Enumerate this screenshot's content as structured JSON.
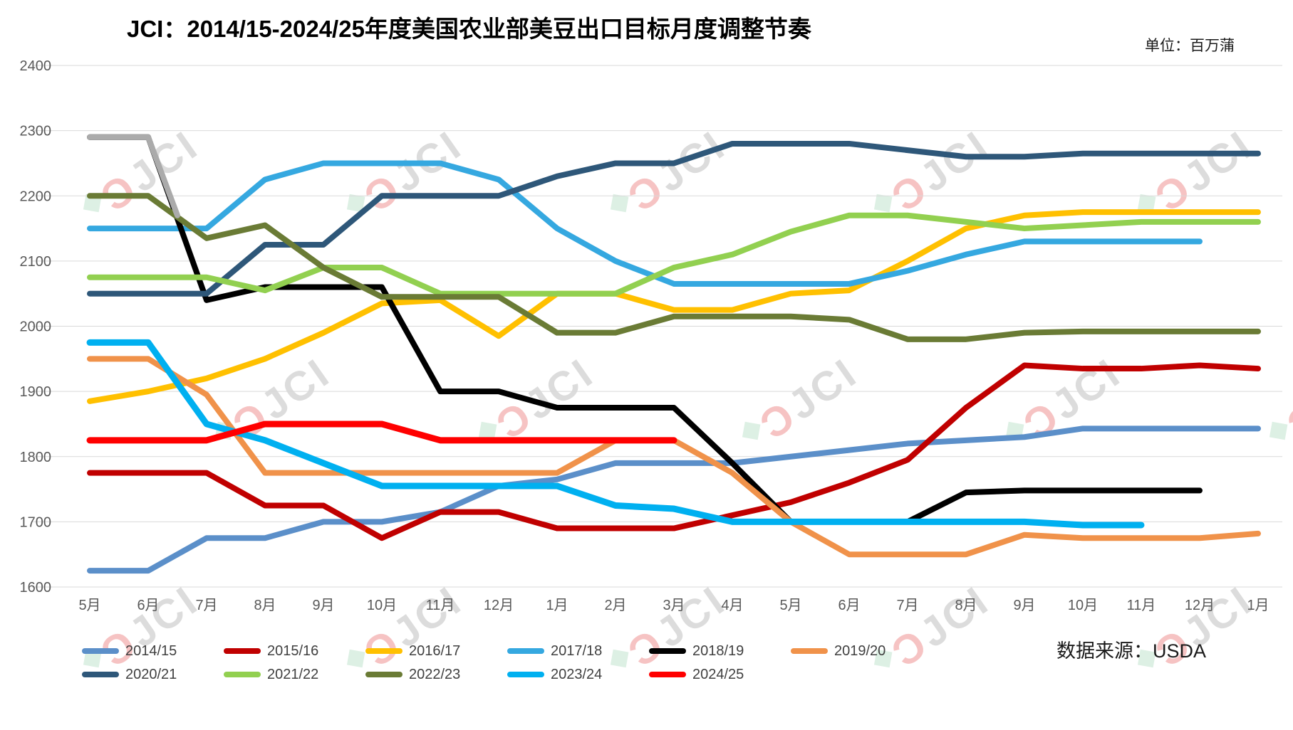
{
  "header": {
    "title": "JCI：2014/15-2024/25年度美国农业部美豆出口目标月度调整节奏",
    "unit_label": "单位：百万蒲",
    "source_label": "数据来源：USDA"
  },
  "chart_data": {
    "type": "line",
    "title": "JCI：2014/15-2024/25年度美国农业部美豆出口目标月度调整节奏",
    "ylabel": "百万蒲",
    "ylim": [
      1600,
      2400
    ],
    "ystep": 100,
    "grid": "horizontal",
    "legend_position": "bottom",
    "categories": [
      "5月",
      "6月",
      "7月",
      "8月",
      "9月",
      "10月",
      "11月",
      "12月",
      "1月",
      "2月",
      "3月",
      "4月",
      "5月",
      "6月",
      "7月",
      "8月",
      "9月",
      "10月",
      "11月",
      "12月",
      "1月"
    ],
    "series": [
      {
        "name": "2014/15",
        "color": "#5B8FC9",
        "values": [
          1625,
          1625,
          1675,
          1675,
          1700,
          1700,
          1715,
          1755,
          1765,
          1790,
          1790,
          1790,
          1800,
          1810,
          1820,
          1825,
          1830,
          1843,
          1843,
          1843,
          1843
        ]
      },
      {
        "name": "2015/16",
        "color": "#C00000",
        "values": [
          1775,
          1775,
          1775,
          1725,
          1725,
          1675,
          1715,
          1715,
          1690,
          1690,
          1690,
          1710,
          1730,
          1760,
          1795,
          1875,
          1940,
          1935,
          1935,
          1940,
          1935
        ]
      },
      {
        "name": "2016/17",
        "color": "#FFC000",
        "values": [
          1885,
          1900,
          1920,
          1950,
          1990,
          2035,
          2040,
          1985,
          2050,
          2050,
          2025,
          2025,
          2050,
          2055,
          2100,
          2150,
          2170,
          2175,
          2175,
          2175,
          2175
        ]
      },
      {
        "name": "2017/18",
        "color": "#35A8E0",
        "values": [
          2150,
          2150,
          2150,
          2225,
          2250,
          2250,
          2250,
          2225,
          2150,
          2100,
          2065,
          2065,
          2065,
          2065,
          2085,
          2110,
          2130,
          2130,
          2130,
          2130,
          null
        ]
      },
      {
        "name": "2018/19",
        "color": "#000000",
        "values": [
          2290,
          2290,
          2040,
          2060,
          2060,
          2060,
          1900,
          1900,
          1875,
          1875,
          1875,
          1790,
          1700,
          1700,
          1700,
          1745,
          1748,
          1748,
          1748,
          1748,
          null
        ]
      },
      {
        "name": "2019/20",
        "color": "#F0924A",
        "values": [
          1950,
          1950,
          1895,
          1775,
          1775,
          1775,
          1775,
          1775,
          1775,
          1825,
          1825,
          1775,
          1700,
          1650,
          1650,
          1650,
          1680,
          1675,
          1675,
          1675,
          1682
        ]
      },
      {
        "name": "2020/21",
        "color": "#2E5779",
        "values": [
          2050,
          2050,
          2050,
          2125,
          2125,
          2200,
          2200,
          2200,
          2230,
          2250,
          2250,
          2280,
          2280,
          2280,
          2270,
          2260,
          2260,
          2265,
          2265,
          2265,
          2265
        ]
      },
      {
        "name": "2021/22",
        "color": "#92D050",
        "values": [
          2075,
          2075,
          2075,
          2055,
          2090,
          2090,
          2050,
          2050,
          2050,
          2050,
          2090,
          2110,
          2145,
          2170,
          2170,
          2160,
          2150,
          2155,
          2160,
          2160,
          2160
        ]
      },
      {
        "name": "2022/23",
        "color": "#6A7B35",
        "values": [
          2200,
          2200,
          2135,
          2155,
          2090,
          2045,
          2045,
          2045,
          1990,
          1990,
          2015,
          2015,
          2015,
          2010,
          1980,
          1980,
          1990,
          1992,
          1992,
          1992,
          1992
        ]
      },
      {
        "name": "2023/24",
        "color": "#00B0F0",
        "values": [
          1975,
          1975,
          1850,
          1825,
          1790,
          1755,
          1755,
          1755,
          1755,
          1725,
          1720,
          1700,
          1700,
          1700,
          1700,
          1700,
          1700,
          1695,
          1695,
          null,
          null
        ]
      },
      {
        "name": "2024/25",
        "color": "#FF0000",
        "values": [
          1825,
          1825,
          1825,
          1850,
          1850,
          1850,
          1825,
          1825,
          1825,
          1825,
          1825,
          null,
          null,
          null,
          null,
          null,
          null,
          null,
          null,
          null,
          null
        ]
      }
    ],
    "gray_lead_in": {
      "color": "#ABABAB",
      "comment": "gray opening segment of 2018/19 initial projection",
      "points": [
        [
          0,
          2290
        ],
        [
          1,
          2290
        ],
        [
          1.5,
          2170
        ]
      ]
    }
  }
}
